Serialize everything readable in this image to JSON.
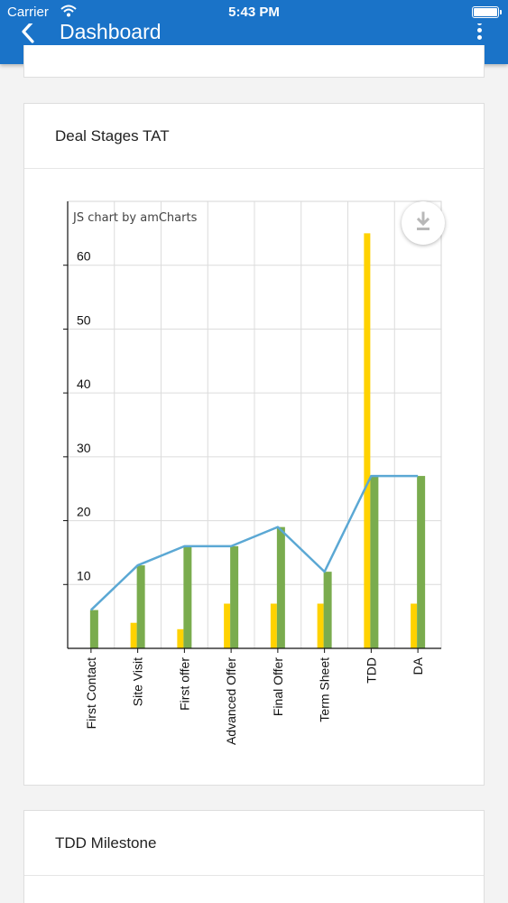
{
  "status_bar": {
    "carrier": "Carrier",
    "time": "5:43 PM"
  },
  "nav": {
    "title": "Dashboard",
    "back_icon": "chevron-left-icon",
    "menu_icon": "more-vertical-icon"
  },
  "cards": {
    "deal_stages": {
      "title": "Deal Stages TAT"
    },
    "tdd_milestone": {
      "title": "TDD Milestone"
    }
  },
  "chart": {
    "credit": "JS chart by amCharts",
    "download_icon": "download-icon",
    "colors": {
      "bar1": "#FFD200",
      "bar2": "#7AAC4E",
      "line": "#5BA8D4"
    }
  },
  "chart_data": {
    "type": "bar",
    "title": "",
    "xlabel": "",
    "ylabel": "",
    "ylim": [
      0,
      70
    ],
    "yticks": [
      10,
      20,
      30,
      40,
      50,
      60
    ],
    "grid": true,
    "categories": [
      "First Contact",
      "Site Visit",
      "First offer",
      "Advanced Offer",
      "Final Offer",
      "Term Sheet",
      "TDD",
      "DA"
    ],
    "series": [
      {
        "type": "bar",
        "values": [
          0,
          4,
          3,
          7,
          7,
          7,
          65,
          7
        ]
      },
      {
        "type": "bar",
        "values": [
          6,
          13,
          16,
          16,
          19,
          12,
          27,
          27
        ]
      },
      {
        "type": "line",
        "values": [
          6,
          13,
          16,
          16,
          19,
          12,
          27,
          27
        ]
      }
    ]
  }
}
